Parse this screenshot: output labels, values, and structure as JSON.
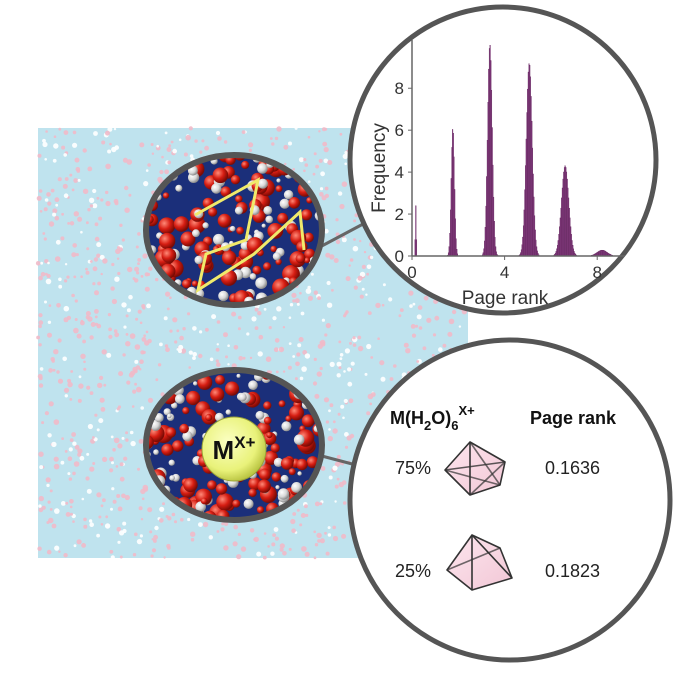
{
  "figure": {
    "colors": {
      "water_bg": "#bfe3ee",
      "hydrogen_dot": "#f1b9c8",
      "bar": "#8b3f86",
      "bar_edge": "#5e2158",
      "lens_ring": "#6b6b6b",
      "path_line": "#f0ea6b",
      "ion_fill": "#e9f27a"
    },
    "ion_label": {
      "base": "M",
      "sup": "X+"
    }
  },
  "chart_data": {
    "type": "bar",
    "xlabel": "Page rank",
    "ylabel": "Frequency",
    "xlim": [
      0,
      9.2
    ],
    "ylim": [
      0,
      10.3
    ],
    "xticks": [
      "0",
      "4",
      "8"
    ],
    "xtick_values": [
      0,
      4,
      8
    ],
    "yticks": [
      "0",
      "2",
      "4",
      "6",
      "8"
    ],
    "ytick_values": [
      0,
      2,
      4,
      6,
      8
    ],
    "peaks": [
      {
        "center": 0.15,
        "height": 2.4,
        "width": 0.02
      },
      {
        "center": 1.75,
        "height": 6.1,
        "width": 0.07
      },
      {
        "center": 3.35,
        "height": 10.1,
        "width": 0.1
      },
      {
        "center": 5.05,
        "height": 9.2,
        "width": 0.13
      },
      {
        "center": 6.6,
        "height": 4.3,
        "width": 0.16
      },
      {
        "center": 8.2,
        "height": 0.28,
        "width": 0.22
      }
    ]
  },
  "table": {
    "header_formula": {
      "prefix": "M(H",
      "sub": "2",
      "mid": "O)",
      "sub2": "6",
      "sup": "X+"
    },
    "header_rank": "Page rank",
    "rows": [
      {
        "percent": "75%",
        "shape": "octahedron",
        "rank": "0.1636"
      },
      {
        "percent": "25%",
        "shape": "square-pyramid",
        "rank": "0.1823"
      }
    ]
  }
}
